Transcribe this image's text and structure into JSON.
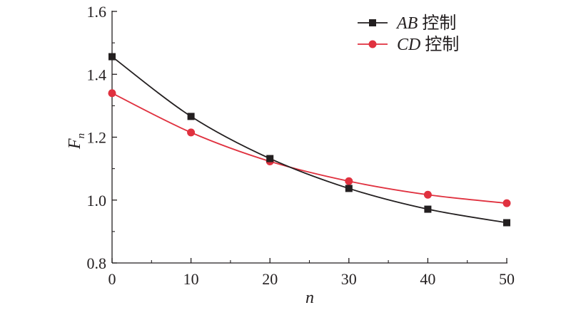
{
  "chart_data": {
    "type": "line",
    "x": [
      0,
      10,
      20,
      30,
      40,
      50
    ],
    "series": [
      {
        "name_italic": "AB",
        "name_suffix": " 控制",
        "values": [
          1.456,
          1.266,
          1.132,
          1.037,
          0.971,
          0.928
        ],
        "color": "#231f20",
        "marker": "square"
      },
      {
        "name_italic": "CD",
        "name_suffix": " 控制",
        "values": [
          1.34,
          1.215,
          1.123,
          1.06,
          1.017,
          0.99
        ],
        "color": "#e0313f",
        "marker": "circle"
      }
    ],
    "xlabel": "n",
    "ylabel_main": "F",
    "ylabel_sub": "n",
    "xlim": [
      0,
      50
    ],
    "ylim": [
      0.8,
      1.6
    ],
    "xticks": [
      "0",
      "10",
      "20",
      "30",
      "40",
      "50"
    ],
    "yticks": [
      "0.8",
      "1.0",
      "1.2",
      "1.4",
      "1.6"
    ],
    "grid": false,
    "legend_position": "top-right"
  }
}
